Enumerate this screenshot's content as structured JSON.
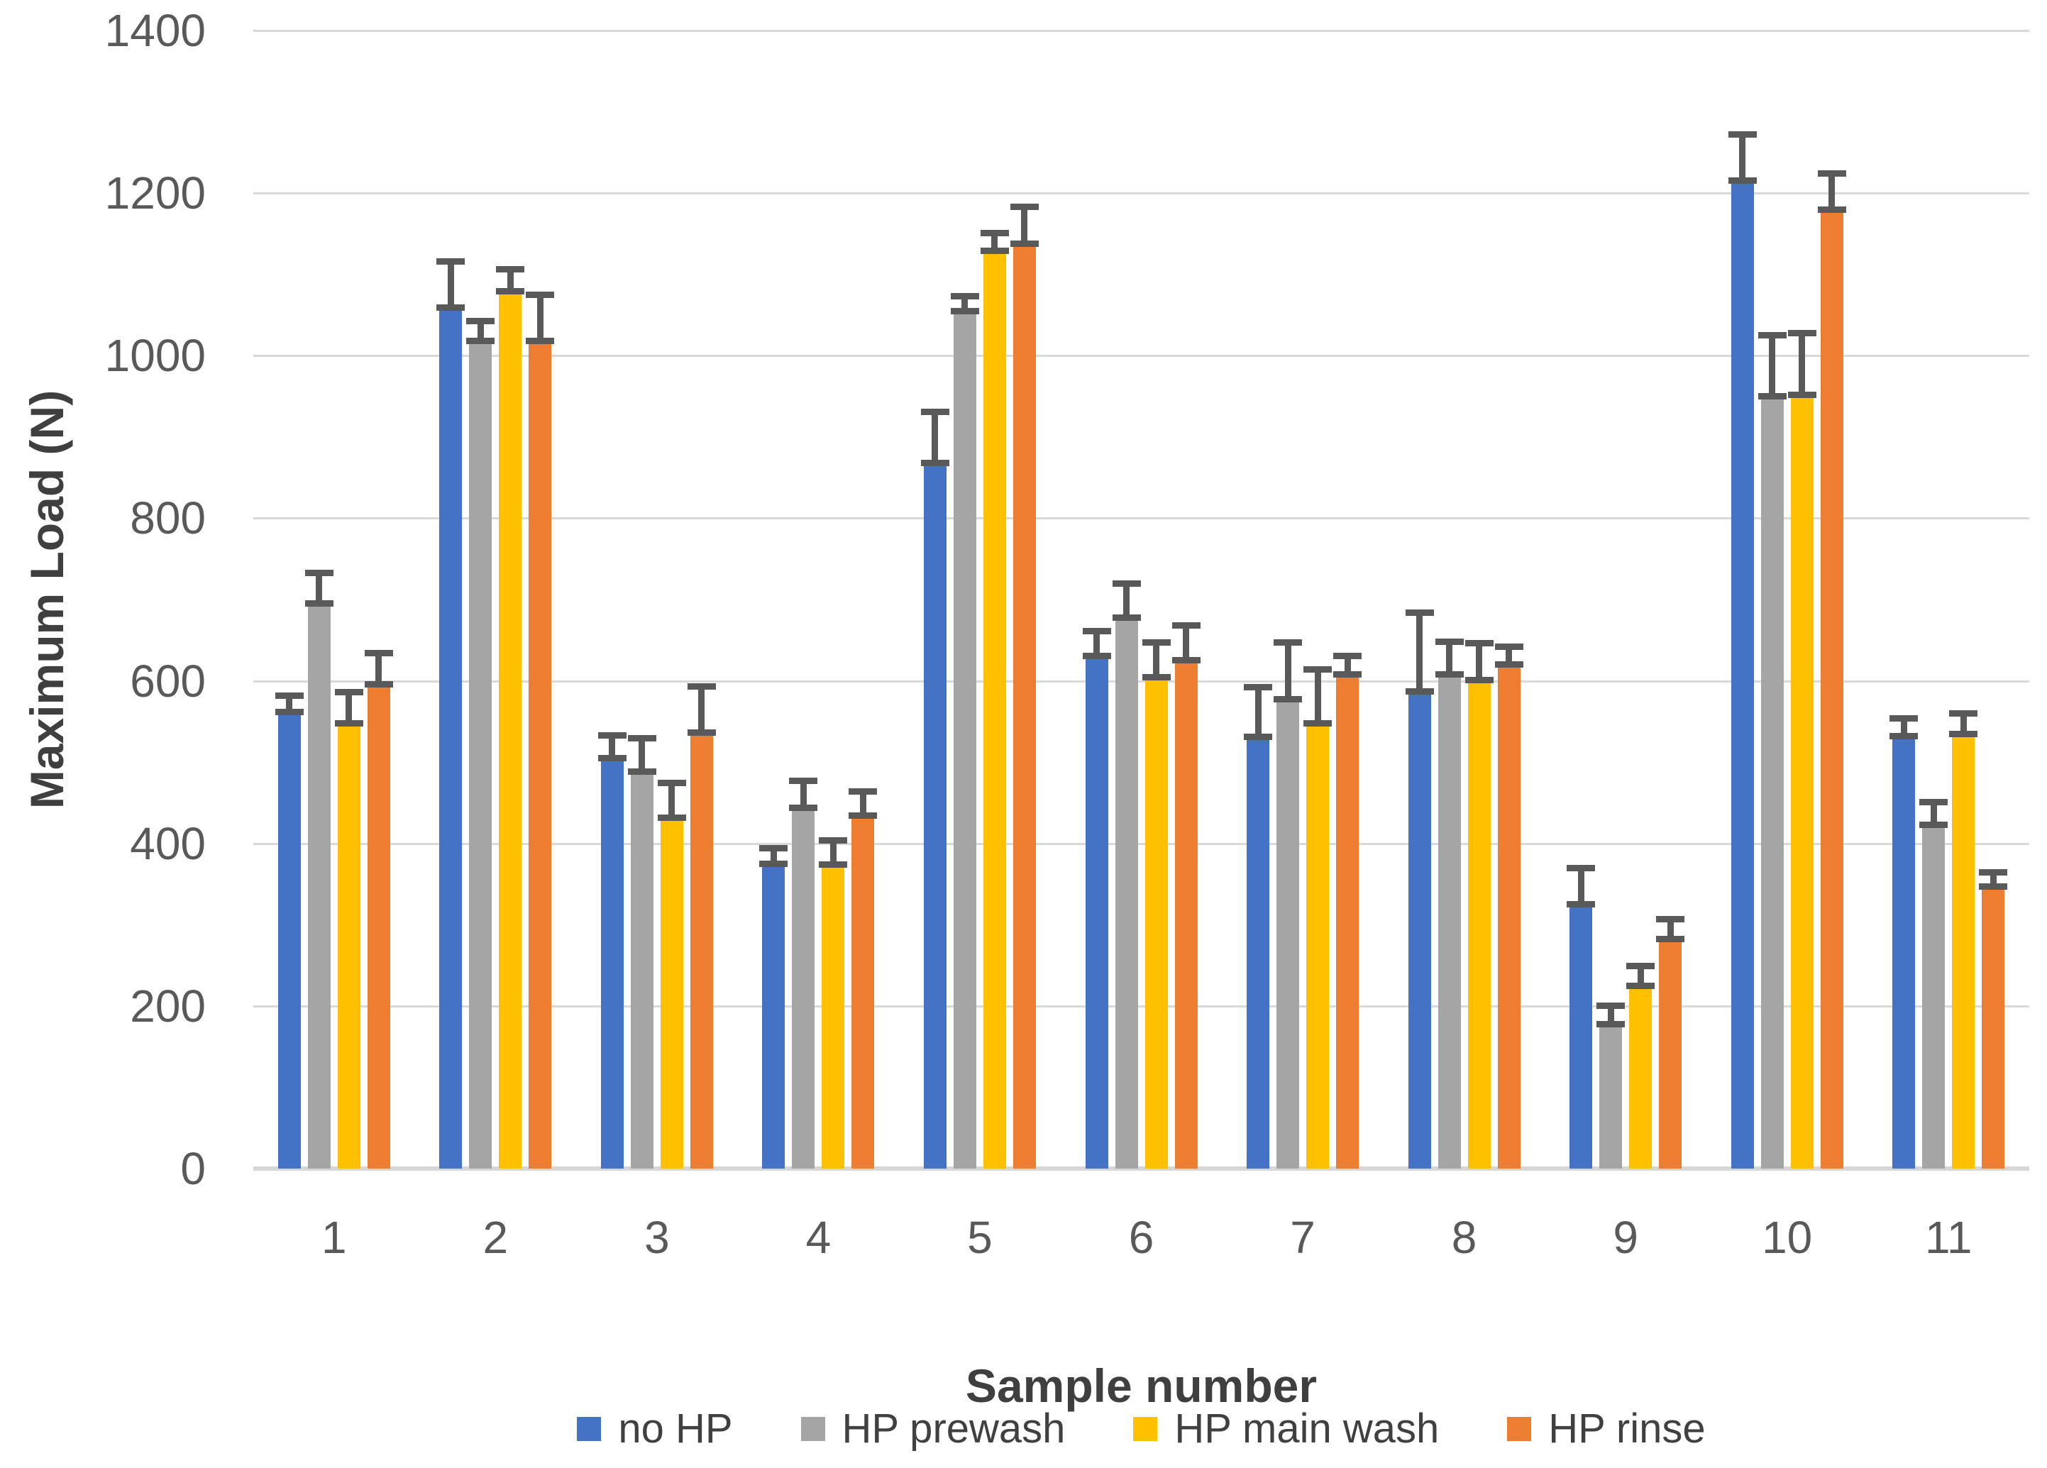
{
  "chart_data": {
    "type": "bar",
    "title": "",
    "xlabel": "Sample number",
    "ylabel": "Maximum Load (N)",
    "ylim": [
      0,
      1400
    ],
    "ytick_step": 200,
    "grid": true,
    "legend_position": "bottom",
    "error_bars": "plus-direction-capped",
    "categories": [
      "1",
      "2",
      "3",
      "4",
      "5",
      "6",
      "7",
      "8",
      "9",
      "10",
      "11"
    ],
    "series": [
      {
        "name": "no HP",
        "color": "#4472C4",
        "values": [
          562,
          1059,
          505,
          375,
          868,
          631,
          531,
          587,
          325,
          1215,
          532
        ],
        "errors": [
          20,
          57,
          28,
          19,
          63,
          30,
          61,
          97,
          45,
          57,
          22
        ]
      },
      {
        "name": "HP prewash",
        "color": "#A5A5A5",
        "values": [
          695,
          1018,
          488,
          444,
          1055,
          678,
          577,
          608,
          178,
          950,
          423
        ],
        "errors": [
          38,
          25,
          41,
          33,
          18,
          42,
          70,
          40,
          22,
          75,
          28
        ]
      },
      {
        "name": "HP main wash",
        "color": "#FFC000",
        "values": [
          548,
          1079,
          432,
          374,
          1129,
          604,
          548,
          601,
          225,
          952,
          535
        ],
        "errors": [
          38,
          27,
          42,
          30,
          22,
          43,
          66,
          45,
          24,
          76,
          25
        ]
      },
      {
        "name": "HP rinse",
        "color": "#ED7D31",
        "values": [
          596,
          1018,
          536,
          434,
          1138,
          625,
          608,
          620,
          282,
          1180,
          347
        ],
        "errors": [
          38,
          57,
          57,
          30,
          45,
          43,
          23,
          22,
          25,
          44,
          17
        ]
      }
    ],
    "style": {
      "grid_color": "#d9d9d9",
      "error_bar_color": "#595959",
      "tick_label_color": "#595959",
      "axis_title_color": "#3f3f3f"
    }
  }
}
